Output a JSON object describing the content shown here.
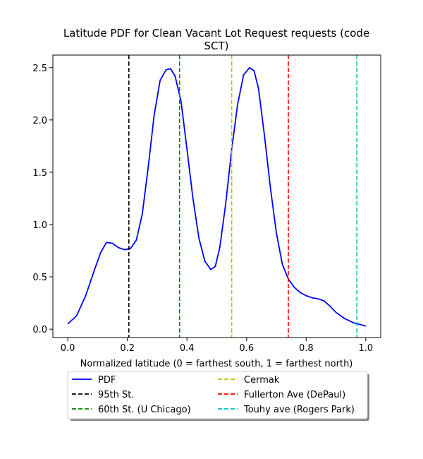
{
  "chart_data": {
    "type": "line",
    "title": "Latitude PDF for Clean Vacant Lot Request  requests (code SCT)",
    "title_lines": [
      "Latitude PDF for Clean Vacant Lot Request  requests (code",
      "SCT)"
    ],
    "xlabel": "Normalized latitude (0 = farthest south, 1 = farthest north)",
    "ylabel": "",
    "xlim": [
      -0.05,
      1.05
    ],
    "ylim": [
      -0.08,
      2.62
    ],
    "xticks": [
      0.0,
      0.2,
      0.4,
      0.6,
      0.8,
      1.0
    ],
    "xtick_labels": [
      "0.0",
      "0.2",
      "0.4",
      "0.6",
      "0.8",
      "1.0"
    ],
    "yticks": [
      0.0,
      0.5,
      1.0,
      1.5,
      2.0,
      2.5
    ],
    "ytick_labels": [
      "0.0",
      "0.5",
      "1.0",
      "1.5",
      "2.0",
      "2.5"
    ],
    "grid": false,
    "legend_position": "below plot",
    "series": [
      {
        "name": "PDF",
        "color": "#0000ff",
        "style": "solid",
        "x": [
          0.0,
          0.03,
          0.06,
          0.09,
          0.11,
          0.13,
          0.15,
          0.17,
          0.19,
          0.21,
          0.23,
          0.25,
          0.27,
          0.29,
          0.31,
          0.33,
          0.345,
          0.36,
          0.38,
          0.4,
          0.42,
          0.44,
          0.46,
          0.48,
          0.495,
          0.51,
          0.53,
          0.55,
          0.57,
          0.59,
          0.61,
          0.625,
          0.64,
          0.66,
          0.68,
          0.7,
          0.72,
          0.74,
          0.76,
          0.78,
          0.8,
          0.82,
          0.84,
          0.86,
          0.88,
          0.9,
          0.93,
          0.96,
          1.0
        ],
        "y": [
          0.05,
          0.13,
          0.32,
          0.57,
          0.73,
          0.83,
          0.82,
          0.78,
          0.76,
          0.77,
          0.85,
          1.1,
          1.55,
          2.05,
          2.38,
          2.48,
          2.49,
          2.42,
          2.18,
          1.72,
          1.25,
          0.87,
          0.65,
          0.57,
          0.6,
          0.78,
          1.2,
          1.72,
          2.15,
          2.43,
          2.5,
          2.47,
          2.3,
          1.85,
          1.35,
          0.92,
          0.62,
          0.48,
          0.4,
          0.35,
          0.32,
          0.3,
          0.29,
          0.27,
          0.22,
          0.16,
          0.1,
          0.06,
          0.03
        ]
      },
      {
        "name": "95th St.",
        "color": "#000000",
        "style": "dashed",
        "x_value": 0.205
      },
      {
        "name": "60th St. (U Chicago)",
        "color": "#008000",
        "style": "dashed",
        "x_value": 0.375
      },
      {
        "name": "Cermak",
        "color": "#bfbf00",
        "style": "dashed",
        "x_value": 0.55
      },
      {
        "name": "Fullerton Ave (DePaul)",
        "color": "#ff0000",
        "style": "dashed",
        "x_value": 0.74
      },
      {
        "name": "Touhy ave (Rogers Park)",
        "color": "#00bfbf",
        "style": "dashed",
        "x_value": 0.97
      }
    ]
  }
}
